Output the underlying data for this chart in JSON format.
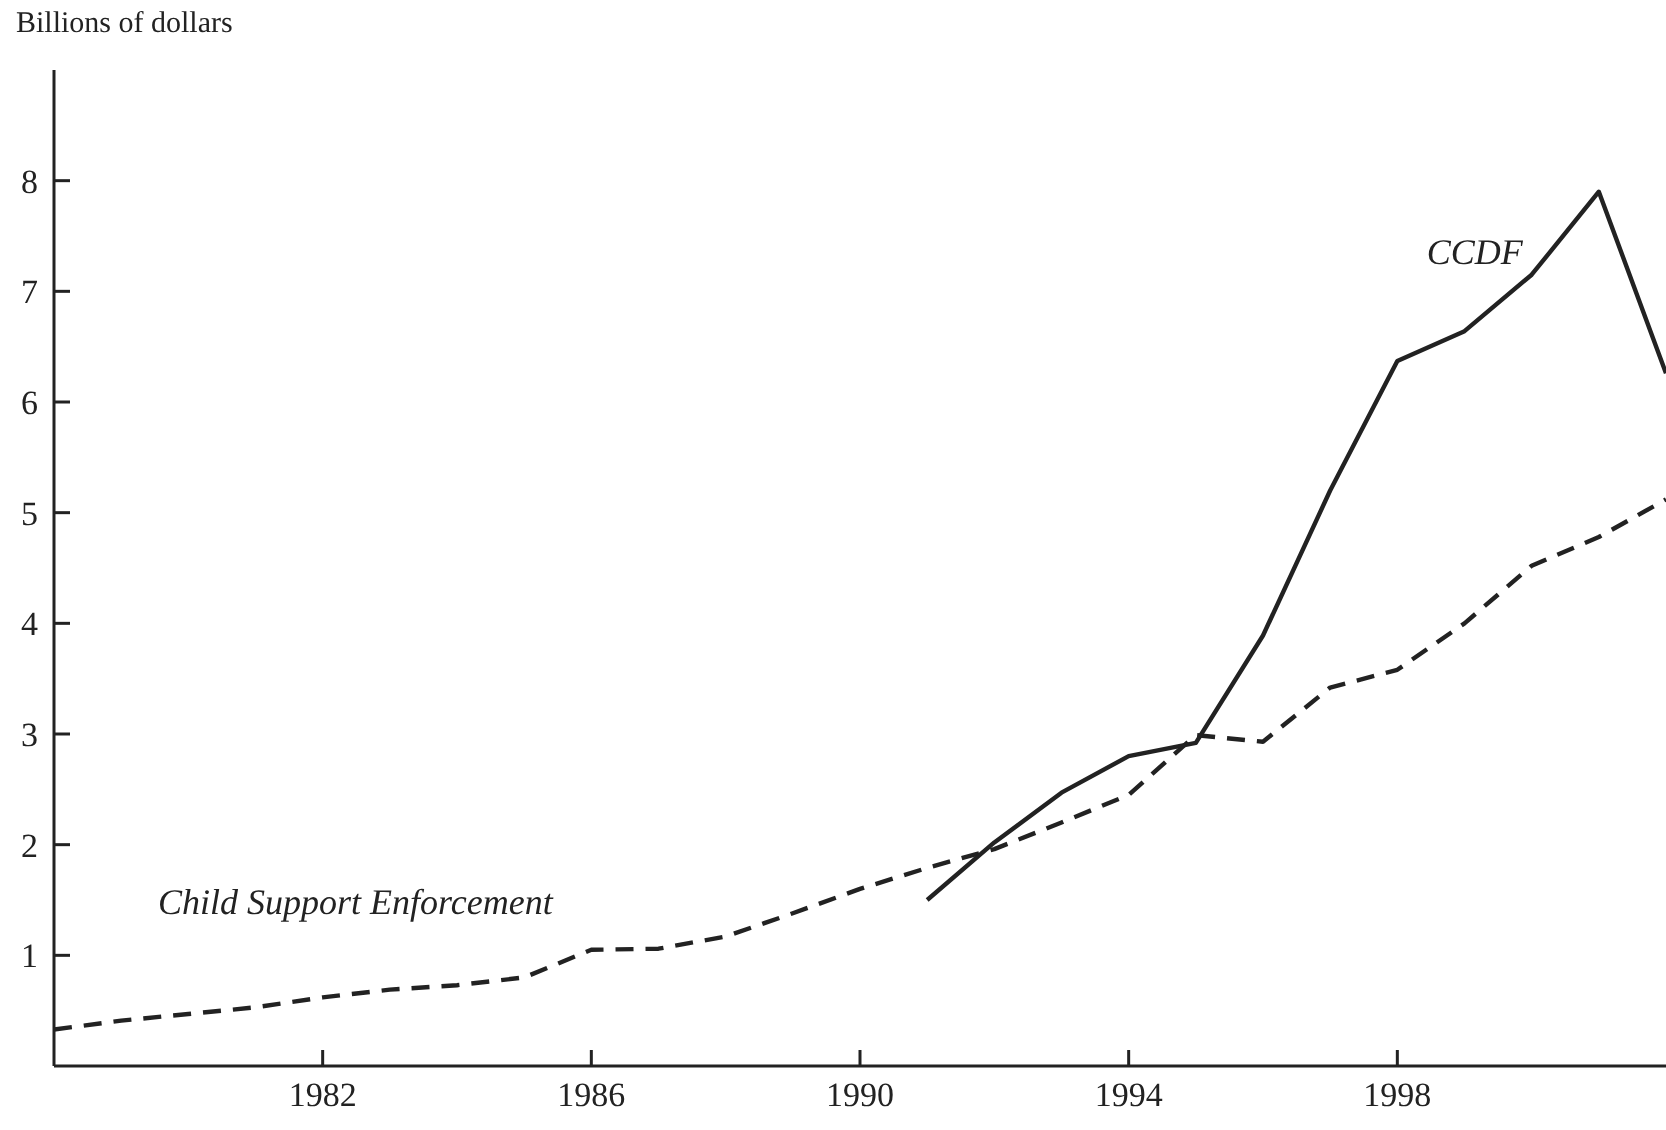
{
  "chart_data": {
    "type": "line",
    "ylabel": "Billions of dollars",
    "x": [
      1978,
      1979,
      1980,
      1981,
      1982,
      1983,
      1984,
      1985,
      1986,
      1987,
      1988,
      1989,
      1990,
      1991,
      1992,
      1993,
      1994,
      1995,
      1996,
      1997,
      1998,
      1999,
      2000,
      2001,
      2002
    ],
    "series": [
      {
        "name": "Child Support Enforcement",
        "color": "#222222",
        "line_style": "dashed",
        "values": [
          0.33,
          0.41,
          0.47,
          0.53,
          0.62,
          0.69,
          0.73,
          0.8,
          1.05,
          1.06,
          1.17,
          1.38,
          1.6,
          1.79,
          1.96,
          2.2,
          2.45,
          2.99,
          2.93,
          3.42,
          3.58,
          4.0,
          4.52,
          4.78,
          5.12
        ]
      },
      {
        "name": "CCDF",
        "color": "#222222",
        "line_style": "solid",
        "values": [
          null,
          null,
          null,
          null,
          null,
          null,
          null,
          null,
          null,
          null,
          null,
          null,
          null,
          1.5,
          2.02,
          2.47,
          2.8,
          2.92,
          3.89,
          5.2,
          6.37,
          6.64,
          7.15,
          7.9,
          6.26
        ]
      }
    ],
    "xlim": [
      1978,
      2002
    ],
    "xticks": [
      1982,
      1986,
      1990,
      1994,
      1998
    ],
    "ylim": [
      0,
      9
    ],
    "yticks": [
      1,
      2,
      3,
      4,
      5,
      6,
      7,
      8
    ],
    "grid": false,
    "legend": false
  }
}
